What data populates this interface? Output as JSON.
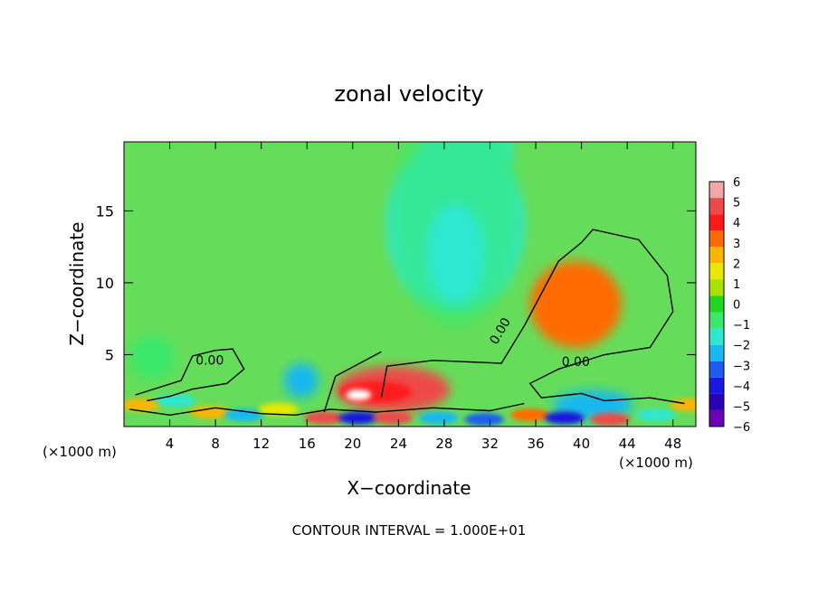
{
  "chart_data": {
    "type": "heatmap",
    "title": "zonal velocity",
    "xlabel": "X−coordinate",
    "ylabel": "Z−coordinate",
    "x_unit_left": "(×1000 m)",
    "x_unit_right": "(×1000 m)",
    "footer": "CONTOUR INTERVAL = 1.000E+01",
    "xlim": [
      0,
      50
    ],
    "ylim": [
      0,
      19.8
    ],
    "x_ticks": [
      4,
      8,
      12,
      16,
      20,
      24,
      28,
      32,
      36,
      40,
      44,
      48
    ],
    "y_ticks": [
      5,
      10,
      15
    ],
    "colorbar": {
      "levels": [
        6,
        5,
        4,
        3,
        2,
        1,
        0,
        -1,
        -2,
        -3,
        -4,
        -5,
        -6
      ],
      "colors": [
        "#f4a6a6",
        "#ee4a4a",
        "#ff1a1a",
        "#ff6a00",
        "#ffb400",
        "#e8e800",
        "#a8e000",
        "#22d722",
        "#3be86a",
        "#2ee8d2",
        "#18b8f0",
        "#1e5cf0",
        "#1818e0",
        "#2a00b4",
        "#6c00b8"
      ]
    },
    "contour_label": "0.00",
    "background_color": "#66dd5a",
    "features": [
      {
        "kind": "jet",
        "value": -2.5,
        "x": 29,
        "z": 14,
        "rx": 6,
        "rz": 6
      },
      {
        "kind": "jet",
        "value": -2.3,
        "x": 30,
        "z": 19,
        "rx": 4,
        "rz": 2
      },
      {
        "kind": "max",
        "value": 3,
        "x": 39.5,
        "z": 8.5,
        "rx": 4,
        "rz": 3
      },
      {
        "kind": "max",
        "value": 5,
        "x": 23.5,
        "z": 2.6,
        "rx": 5,
        "rz": 1.6
      },
      {
        "kind": "min",
        "value": -4,
        "x": 15.5,
        "z": 3.2,
        "rx": 1.5,
        "rz": 1.2
      },
      {
        "kind": "min",
        "value": -4,
        "x": 41,
        "z": 1.5,
        "rx": 3.5,
        "rz": 1
      },
      {
        "kind": "min",
        "value": -2,
        "x": 2.5,
        "z": 4.8,
        "rx": 2,
        "rz": 1.5
      }
    ]
  }
}
